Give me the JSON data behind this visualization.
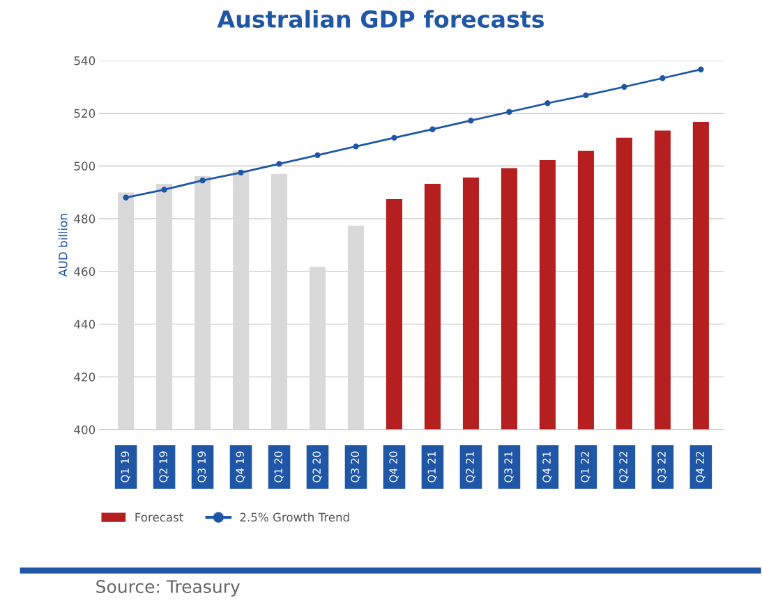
{
  "chart_data": {
    "type": "bar",
    "title": "Australian GDP forecasts",
    "ylabel": "AUD billion",
    "categories": [
      "Q1 19",
      "Q2 19",
      "Q3 19",
      "Q4 19",
      "Q1 20",
      "Q2 20",
      "Q3 20",
      "Q4 20",
      "Q1 21",
      "Q2 21",
      "Q3 21",
      "Q4 21",
      "Q1 22",
      "Q2 22",
      "Q3 22",
      "Q4 22"
    ],
    "series": [
      {
        "color": "#d9d9d9",
        "values": [
          489.9,
          493.2,
          496.2,
          498.4,
          497.0,
          461.7,
          477.3,
          null,
          null,
          null,
          null,
          null,
          null,
          null,
          null,
          null
        ]
      },
      {
        "name": "Forecast",
        "color": "#b51f1f",
        "values": [
          null,
          null,
          null,
          null,
          null,
          null,
          null,
          487.4,
          493.2,
          495.6,
          499.2,
          502.2,
          505.7,
          510.7,
          513.4,
          516.7
        ]
      },
      {
        "name": "2.5% Growth Trend",
        "type": "line",
        "color": "#1f56a6",
        "marker": "circle",
        "values": [
          488.0,
          491.0,
          494.5,
          497.5,
          500.8,
          504.1,
          507.4,
          510.7,
          513.9,
          517.2,
          520.5,
          523.8,
          526.8,
          530.0,
          533.3,
          536.6
        ]
      }
    ],
    "ylim": [
      400,
      540
    ],
    "yticks": [
      400,
      420,
      440,
      460,
      480,
      500,
      520,
      540
    ],
    "grid": "y",
    "legend": "bottom left",
    "annotations": [
      "Source: Treasury"
    ]
  }
}
